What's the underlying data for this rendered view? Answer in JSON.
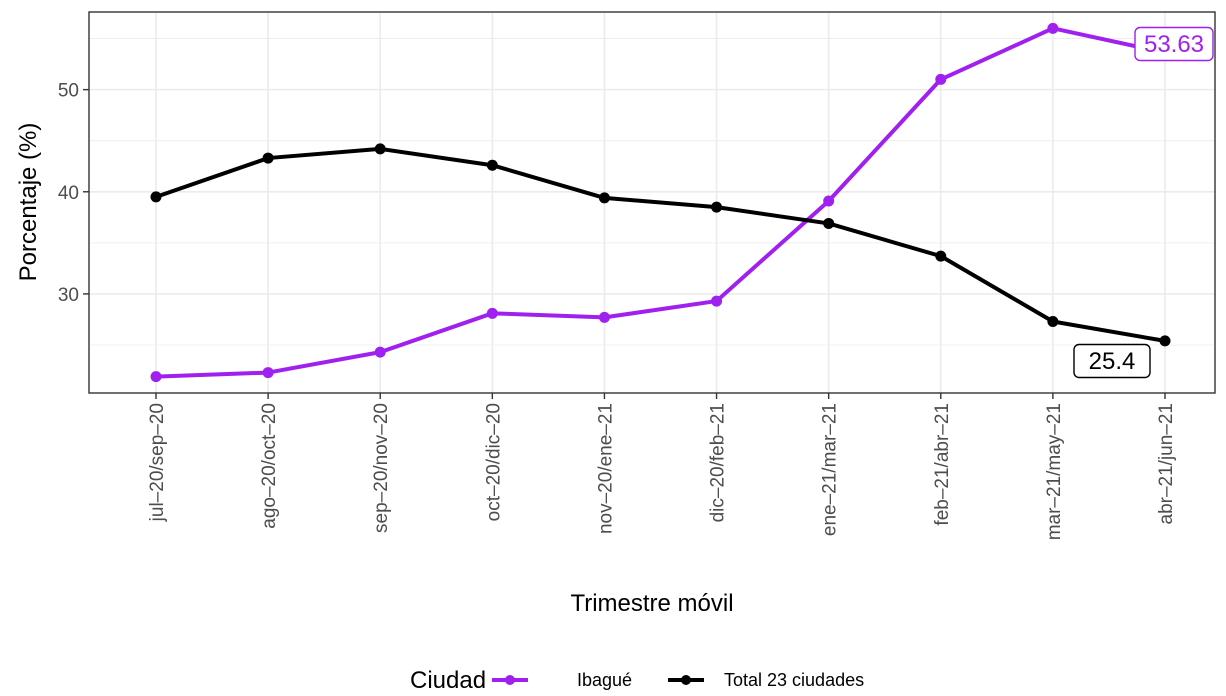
{
  "chart_data": {
    "type": "line",
    "title": "",
    "xlabel": "Trimestre móvil",
    "ylabel": "Porcentaje (%)",
    "categories": [
      "jul–20/sep–20",
      "ago–20/oct–20",
      "sep–20/nov–20",
      "oct–20/dic–20",
      "nov–20/ene–21",
      "dic–20/feb–21",
      "ene–21/mar–21",
      "feb–21/abr–21",
      "mar–21/may–21",
      "abr–21/jun–21"
    ],
    "ylim": [
      20.3,
      57.6
    ],
    "yticks": [
      30,
      40,
      50
    ],
    "ytick_labels": [
      "30",
      "40",
      "50"
    ],
    "grid": true,
    "legend_title": "Ciudad",
    "legend_position": "bottom",
    "series": [
      {
        "name": "Ibagué",
        "color": "#a020f0",
        "values": [
          21.9,
          22.3,
          24.3,
          28.1,
          27.7,
          29.3,
          39.1,
          51.0,
          56.0,
          53.63
        ],
        "end_label": "53.63"
      },
      {
        "name": "Total 23 ciudades",
        "color": "#000000",
        "values": [
          39.5,
          43.3,
          44.2,
          42.6,
          39.4,
          38.5,
          36.9,
          33.7,
          27.3,
          25.4
        ],
        "end_label": "25.4"
      }
    ]
  }
}
